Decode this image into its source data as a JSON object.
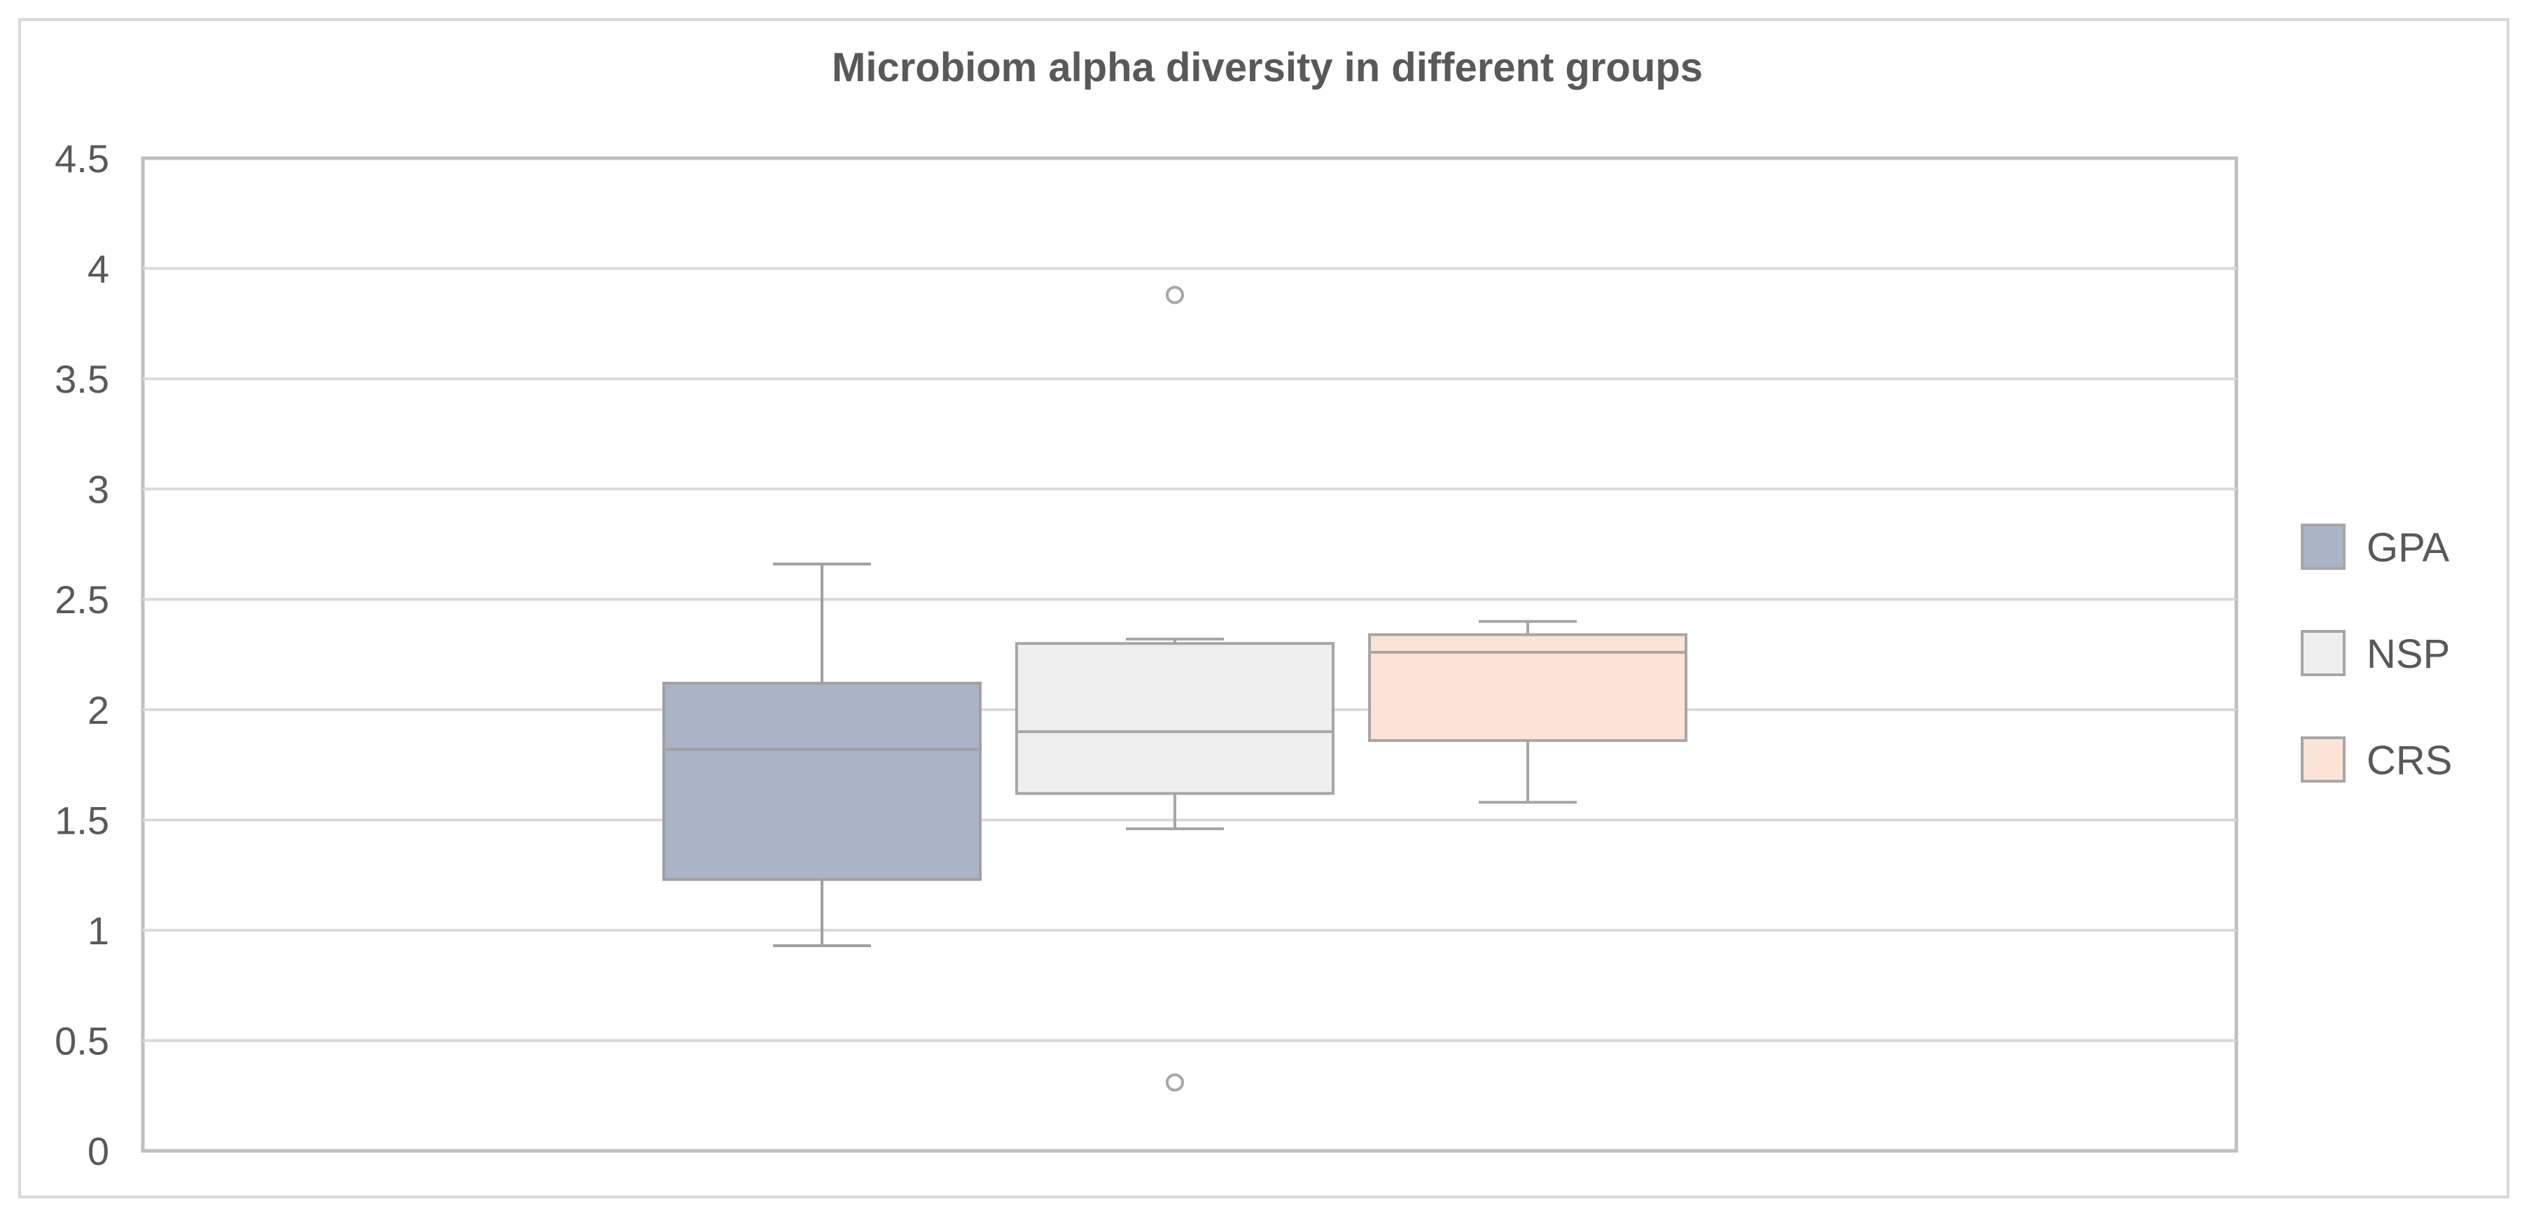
{
  "chart_data": {
    "type": "box",
    "title": "Microbiom alpha diversity in different groups",
    "xlabel": "",
    "ylabel": "",
    "ylim": [
      0,
      4.5
    ],
    "yticks": [
      "0",
      "0.5",
      "1",
      "1.5",
      "2",
      "2.5",
      "3",
      "3.5",
      "4",
      "4.5"
    ],
    "grid": true,
    "legend_position": "right",
    "series": [
      {
        "name": "GPA",
        "color": "#aab4c7",
        "stroke": "#a0a0a0",
        "whisker_low": 0.93,
        "q1": 1.23,
        "median": 1.82,
        "q3": 2.12,
        "whisker_high": 2.66,
        "outliers": []
      },
      {
        "name": "NSP",
        "color": "#efefef",
        "stroke": "#a6a6a6",
        "whisker_low": 1.46,
        "q1": 1.62,
        "median": 1.9,
        "q3": 2.3,
        "whisker_high": 2.32,
        "outliers": [
          3.88,
          0.31
        ]
      },
      {
        "name": "CRS",
        "color": "#fbe4d6",
        "stroke": "#a6a6a6",
        "whisker_low": 1.58,
        "q1": 1.86,
        "median": 2.26,
        "q3": 2.34,
        "whisker_high": 2.4,
        "outliers": []
      }
    ]
  }
}
